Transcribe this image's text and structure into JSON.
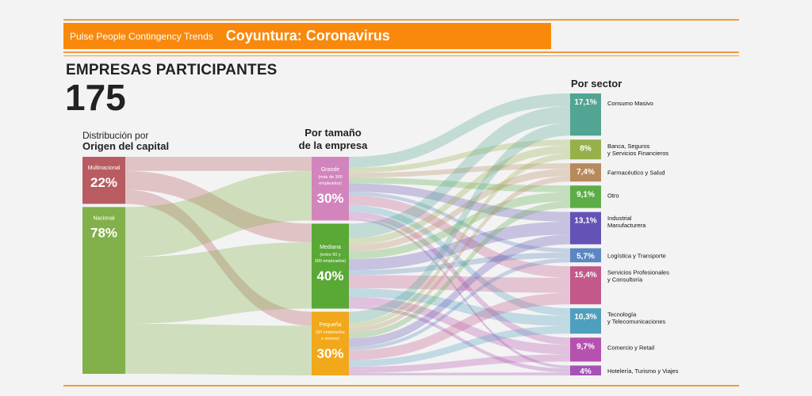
{
  "banner": {
    "subtitle": "Pulse People Contingency Trends",
    "title": "Coyuntura: Coronavirus"
  },
  "heading": "EMPRESAS PARTICIPANTES",
  "total": "175",
  "column_labels": {
    "origin_line1": "Distribución por",
    "origin_line2": "Origen del capital",
    "size_line1": "Por tamaño",
    "size_line2": "de la empresa",
    "sector": "Por sector"
  },
  "colors": {
    "banner": "#f8890c",
    "rule": "#f39a3a"
  },
  "origin": [
    {
      "label": "Multinacional",
      "pct": "22%",
      "value": 22,
      "color": "#b95c62"
    },
    {
      "label": "Nacional",
      "pct": "78%",
      "value": 78,
      "color": "#82b04a"
    }
  ],
  "size": [
    {
      "label_lines": [
        "Grande",
        "(más de 300",
        "empleados)"
      ],
      "pct": "30%",
      "value": 30,
      "color": "#d285bd"
    },
    {
      "label_lines": [
        "Mediana",
        "(entre 50 y",
        "300 empleados)"
      ],
      "pct": "40%",
      "value": 40,
      "color": "#5aa836"
    },
    {
      "label_lines": [
        "Pequeña",
        "(50 empleados",
        "o menos)"
      ],
      "pct": "30%",
      "value": 30,
      "color": "#f1a81a"
    }
  ],
  "sector": [
    {
      "pct": "17,1%",
      "value": 17.1,
      "label_lines": [
        "Consumo Masivo"
      ],
      "color": "#52a493"
    },
    {
      "pct": "8%",
      "value": 8,
      "label_lines": [
        "Banca, Seguros",
        "y Servicios Financieros"
      ],
      "color": "#97b04a"
    },
    {
      "pct": "7,4%",
      "value": 7.4,
      "label_lines": [
        "Farmacéutico y Salud"
      ],
      "color": "#b68a5d"
    },
    {
      "pct": "9,1%",
      "value": 9.1,
      "label_lines": [
        "Otro"
      ],
      "color": "#5cad48"
    },
    {
      "pct": "13,1%",
      "value": 13.1,
      "label_lines": [
        "Industrial",
        "Manufacturera"
      ],
      "color": "#6552b6"
    },
    {
      "pct": "5,7%",
      "value": 5.7,
      "label_lines": [
        "Logística y Transporte"
      ],
      "color": "#5b86c1"
    },
    {
      "pct": "15,4%",
      "value": 15.4,
      "label_lines": [
        "Servicios Profesionales",
        "y Consultoría"
      ],
      "color": "#c2598a"
    },
    {
      "pct": "10,3%",
      "value": 10.3,
      "label_lines": [
        "Tecnología",
        "y Telecomunicaciones"
      ],
      "color": "#4e9fbe"
    },
    {
      "pct": "9,7%",
      "value": 9.7,
      "label_lines": [
        "Comercio y Retail"
      ],
      "color": "#b552b0"
    },
    {
      "pct": "4%",
      "value": 4,
      "label_lines": [
        "Hotelería, Turismo y Viajes"
      ],
      "color": "#a553b5"
    }
  ]
}
